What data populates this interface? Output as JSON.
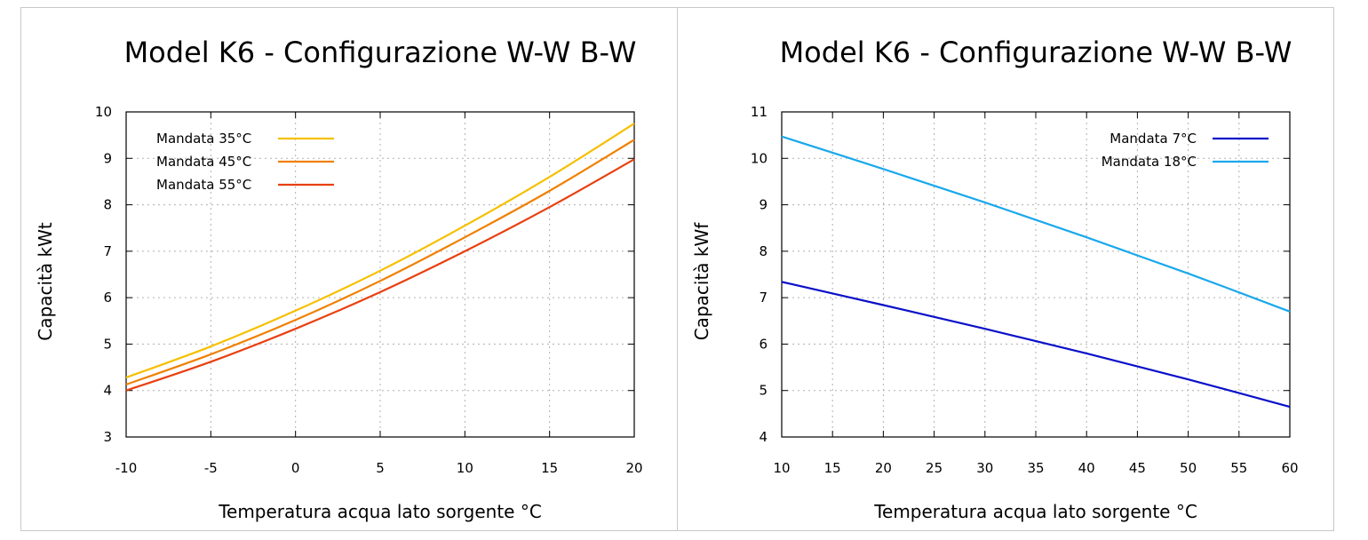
{
  "chart_data": [
    {
      "type": "line",
      "title": "Model K6 - Configurazione W-W B-W",
      "xlabel": "Temperatura acqua lato sorgente °C",
      "ylabel": "Capacità kWt",
      "xlim": [
        -10,
        20
      ],
      "ylim": [
        3,
        10
      ],
      "xticks": [
        -10,
        -5,
        0,
        5,
        10,
        15,
        20
      ],
      "yticks": [
        3,
        4,
        5,
        6,
        7,
        8,
        9,
        10
      ],
      "grid": true,
      "legend_position": "top-left",
      "x": [
        -10,
        -5,
        0,
        5,
        10,
        15,
        20
      ],
      "series": [
        {
          "name": "Mandata 35°C",
          "color": "#f5c000",
          "values": [
            4.28,
            4.95,
            5.72,
            6.58,
            7.55,
            8.6,
            9.75
          ]
        },
        {
          "name": "Mandata 45°C",
          "color": "#f08000",
          "values": [
            4.13,
            4.78,
            5.52,
            6.36,
            7.3,
            8.3,
            9.4
          ]
        },
        {
          "name": "Mandata 55°C",
          "color": "#e84010",
          "values": [
            4.0,
            4.62,
            5.33,
            6.12,
            7.0,
            7.95,
            8.98
          ]
        }
      ]
    },
    {
      "type": "line",
      "title": "Model K6 - Configurazione W-W B-W",
      "xlabel": "Temperatura acqua lato sorgente °C",
      "ylabel": "Capacità kWf",
      "xlim": [
        10,
        60
      ],
      "ylim": [
        4,
        11
      ],
      "xticks": [
        10,
        15,
        20,
        25,
        30,
        35,
        40,
        45,
        50,
        55,
        60
      ],
      "yticks": [
        4,
        5,
        6,
        7,
        8,
        9,
        10,
        11
      ],
      "grid": true,
      "legend_position": "top-right",
      "x": [
        10,
        20,
        30,
        40,
        50,
        60
      ],
      "series": [
        {
          "name": "Mandata 7°C",
          "color": "#0a10c8",
          "values": [
            7.34,
            6.84,
            6.33,
            5.8,
            5.24,
            4.65
          ]
        },
        {
          "name": "Mandata 18°C",
          "color": "#1aa8ec",
          "values": [
            10.47,
            9.77,
            9.05,
            8.3,
            7.52,
            6.7
          ]
        }
      ]
    }
  ]
}
